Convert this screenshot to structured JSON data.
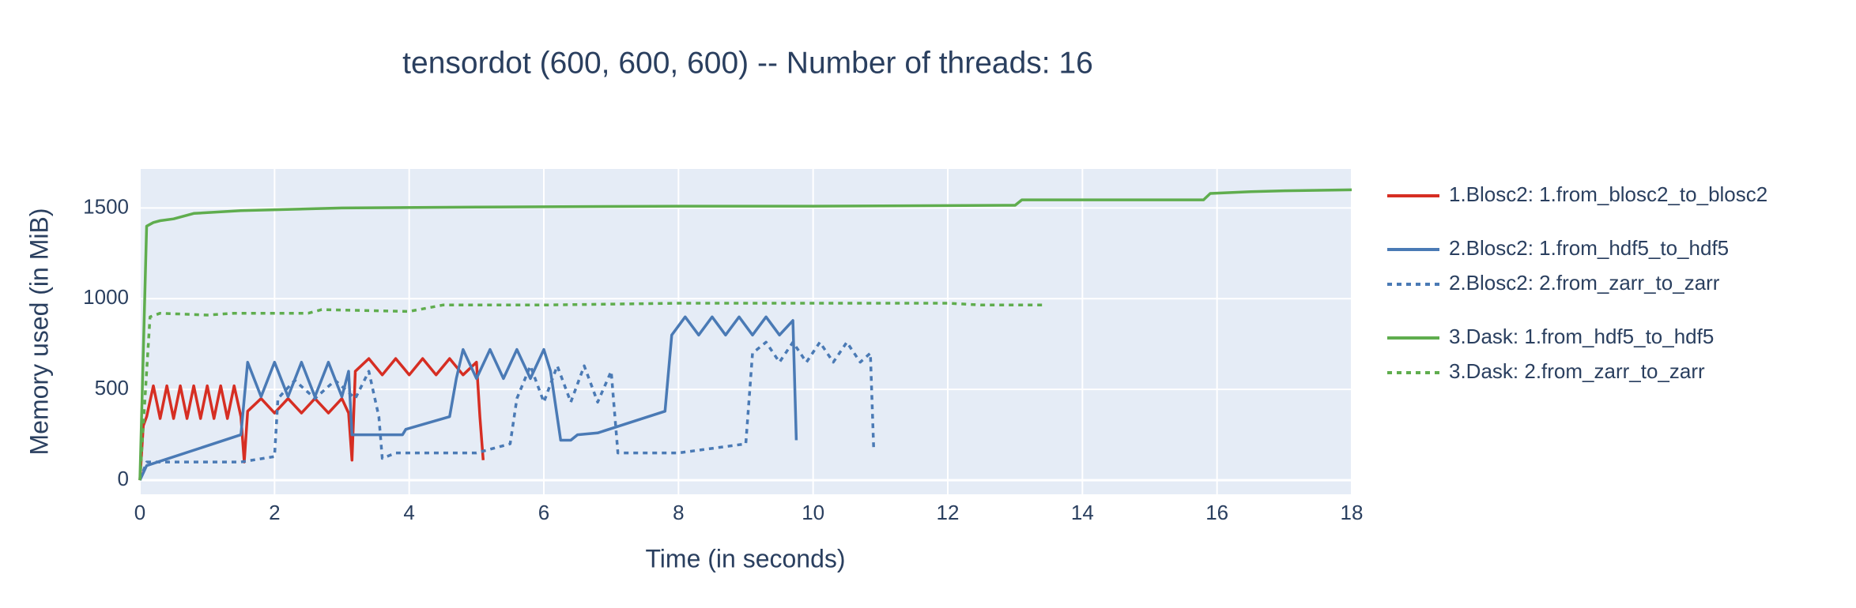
{
  "chart_data": {
    "type": "line",
    "title": "tensordot (600, 600, 600) -- Number of threads: 16",
    "x_label": "Time (in seconds)",
    "y_label": "Memory used (in MiB)",
    "xlim": [
      0,
      18
    ],
    "xticks": [
      0,
      2,
      4,
      6,
      8,
      10,
      12,
      14,
      16,
      18
    ],
    "ylim": [
      -78,
      1715
    ],
    "yticks": [
      0,
      500,
      1000,
      1500
    ],
    "grid": true,
    "legend": "right",
    "series": [
      {
        "name": "1.Blosc2: 1.from_blosc2_to_blosc2",
        "color": "#d62e23",
        "dash": "solid",
        "group": 1,
        "x": [
          0,
          0.05,
          0.1,
          0.2,
          0.3,
          0.4,
          0.5,
          0.6,
          0.7,
          0.8,
          0.9,
          1.0,
          1.1,
          1.2,
          1.3,
          1.4,
          1.5,
          1.55,
          1.6,
          1.8,
          2.0,
          2.2,
          2.4,
          2.6,
          2.8,
          3.0,
          3.1,
          3.15,
          3.2,
          3.4,
          3.6,
          3.8,
          4.0,
          4.2,
          4.4,
          4.6,
          4.8,
          5.0,
          5.05,
          5.1
        ],
        "values": [
          0,
          300,
          350,
          520,
          340,
          520,
          340,
          520,
          340,
          520,
          340,
          520,
          340,
          520,
          340,
          520,
          350,
          100,
          380,
          450,
          370,
          450,
          370,
          450,
          370,
          450,
          370,
          110,
          600,
          670,
          580,
          670,
          580,
          670,
          580,
          670,
          580,
          650,
          350,
          110
        ]
      },
      {
        "name": "2.Blosc2: 1.from_hdf5_to_hdf5",
        "color": "#4a7ab5",
        "dash": "solid",
        "group": 2,
        "x": [
          0,
          0.1,
          1.5,
          1.55,
          1.6,
          1.8,
          2.0,
          2.2,
          2.4,
          2.6,
          2.8,
          3.0,
          3.1,
          3.15,
          3.9,
          3.95,
          4.6,
          4.7,
          4.8,
          5.0,
          5.2,
          5.4,
          5.6,
          5.8,
          6.0,
          6.1,
          6.25,
          6.4,
          6.5,
          6.8,
          7.8,
          7.9,
          8.1,
          8.3,
          8.5,
          8.7,
          8.9,
          9.1,
          9.3,
          9.5,
          9.7,
          9.75
        ],
        "values": [
          0,
          80,
          250,
          450,
          650,
          460,
          650,
          460,
          650,
          460,
          650,
          460,
          600,
          250,
          250,
          280,
          350,
          560,
          720,
          560,
          720,
          560,
          720,
          560,
          720,
          600,
          220,
          220,
          250,
          260,
          380,
          800,
          900,
          800,
          900,
          800,
          900,
          800,
          900,
          800,
          880,
          220
        ]
      },
      {
        "name": "2.Blosc2: 2.from_zarr_to_zarr",
        "color": "#4a7ab5",
        "dash": "dot",
        "group": 2,
        "x": [
          0,
          0.1,
          1.5,
          2.0,
          2.05,
          2.3,
          2.6,
          2.9,
          3.2,
          3.4,
          3.55,
          3.6,
          3.8,
          5.0,
          5.5,
          5.6,
          5.8,
          6.0,
          6.2,
          6.4,
          6.6,
          6.8,
          7.0,
          7.1,
          8.0,
          9.0,
          9.1,
          9.3,
          9.5,
          9.7,
          9.9,
          10.1,
          10.3,
          10.5,
          10.7,
          10.85,
          10.9
        ],
        "values": [
          0,
          100,
          100,
          130,
          450,
          550,
          450,
          550,
          450,
          600,
          350,
          120,
          150,
          150,
          200,
          450,
          630,
          430,
          630,
          430,
          630,
          430,
          600,
          150,
          150,
          200,
          700,
          760,
          650,
          760,
          650,
          760,
          650,
          760,
          650,
          700,
          170
        ]
      },
      {
        "name": "3.Dask: 1.from_hdf5_to_hdf5",
        "color": "#5fad4e",
        "dash": "solid",
        "group": 3,
        "x": [
          0,
          0.1,
          0.2,
          0.3,
          0.5,
          0.8,
          1.5,
          3,
          5,
          8,
          10,
          13,
          13.1,
          15.8,
          15.9,
          16.5,
          17,
          18
        ],
        "values": [
          0,
          1400,
          1420,
          1430,
          1440,
          1470,
          1485,
          1500,
          1505,
          1510,
          1510,
          1515,
          1545,
          1545,
          1580,
          1590,
          1595,
          1600
        ]
      },
      {
        "name": "3.Dask: 2.from_zarr_to_zarr",
        "color": "#5fad4e",
        "dash": "dot",
        "group": 3,
        "x": [
          0,
          0.15,
          0.3,
          1.0,
          1.4,
          2.5,
          2.7,
          4.0,
          4.5,
          6,
          8,
          10,
          12,
          12.5,
          13.4
        ],
        "values": [
          0,
          900,
          920,
          910,
          920,
          920,
          940,
          930,
          965,
          965,
          975,
          975,
          975,
          965,
          965
        ]
      }
    ]
  }
}
